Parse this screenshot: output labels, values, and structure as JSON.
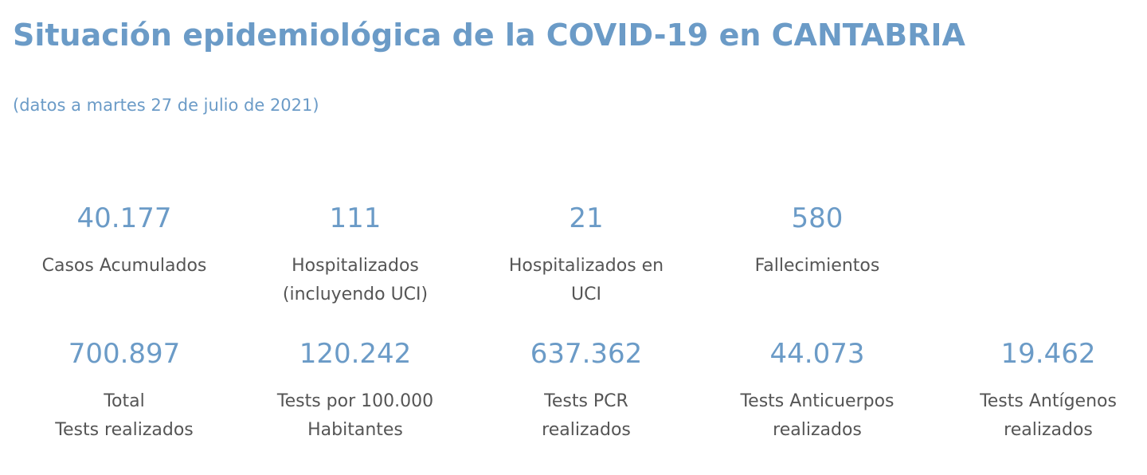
{
  "header": {
    "title": "Situación epidemiológica de la COVID-19 en CANTABRIA",
    "subtitle": "(datos a martes 27 de julio de 2021)"
  },
  "stats_row1": [
    {
      "value": "40.177",
      "label_lines": [
        "Casos Acumulados"
      ]
    },
    {
      "value": "111",
      "label_lines": [
        "Hospitalizados",
        "(incluyendo UCI)"
      ]
    },
    {
      "value": "21",
      "label_lines": [
        "Hospitalizados en",
        "UCI"
      ]
    },
    {
      "value": "580",
      "label_lines": [
        "Fallecimientos"
      ]
    }
  ],
  "stats_row2": [
    {
      "value": "700.897",
      "label_lines": [
        "Total",
        "Tests realizados"
      ]
    },
    {
      "value": "120.242",
      "label_lines": [
        "Tests por 100.000",
        "Habitantes"
      ]
    },
    {
      "value": "637.362",
      "label_lines": [
        "Tests PCR",
        "realizados"
      ]
    },
    {
      "value": "44.073",
      "label_lines": [
        "Tests Anticuerpos",
        "realizados"
      ]
    },
    {
      "value": "19.462",
      "label_lines": [
        "Tests Antígenos",
        "realizados"
      ]
    }
  ],
  "colors": {
    "accent": "#6b9bc7",
    "label_text": "#555555",
    "background": "#ffffff"
  }
}
